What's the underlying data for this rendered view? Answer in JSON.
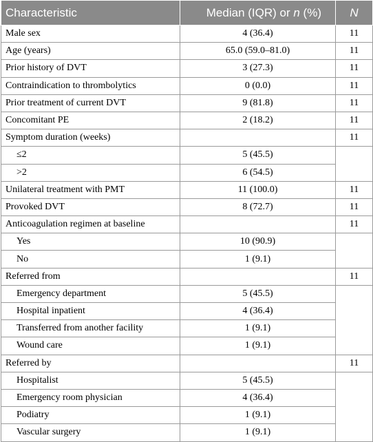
{
  "header": {
    "characteristic": "Characteristic",
    "value_prefix": "Median (IQR) or ",
    "value_n": "n",
    "value_suffix": " (%)",
    "n": "N"
  },
  "rows": [
    {
      "label": "Male sex",
      "value": "4 (36.4)",
      "n": "11"
    },
    {
      "label": "Age (years)",
      "value": "65.0 (59.0–81.0)",
      "n": "11"
    },
    {
      "label": "Prior history of DVT",
      "value": "3 (27.3)",
      "n": "11"
    },
    {
      "label": "Contraindication to thrombolytics",
      "value": "0 (0.0)",
      "n": "11"
    },
    {
      "label": "Prior treatment of current DVT",
      "value": "9 (81.8)",
      "n": "11"
    },
    {
      "label": "Concomitant PE",
      "value": "2 (18.2)",
      "n": "11"
    },
    {
      "label": "Symptom duration (weeks)",
      "value": "",
      "n": "11"
    },
    {
      "label": "≤2",
      "value": "5 (45.5)",
      "n": "",
      "sub": true
    },
    {
      "label": ">2",
      "value": "6 (54.5)",
      "n": "",
      "sub": true
    },
    {
      "label": "Unilateral treatment with PMT",
      "value": "11 (100.0)",
      "n": "11"
    },
    {
      "label": "Provoked DVT",
      "value": "8 (72.7)",
      "n": "11"
    },
    {
      "label": "Anticoagulation regimen at baseline",
      "value": "",
      "n": "11"
    },
    {
      "label": "Yes",
      "value": "10 (90.9)",
      "n": "",
      "sub": true
    },
    {
      "label": "No",
      "value": "1 (9.1)",
      "n": "",
      "sub": true
    },
    {
      "label": "Referred from",
      "value": "",
      "n": "11"
    },
    {
      "label": "Emergency department",
      "value": "5 (45.5)",
      "n": "",
      "sub": true
    },
    {
      "label": "Hospital inpatient",
      "value": "4 (36.4)",
      "n": "",
      "sub": true
    },
    {
      "label": "Transferred from another facility",
      "value": "1 (9.1)",
      "n": "",
      "sub": true
    },
    {
      "label": "Wound care",
      "value": "1 (9.1)",
      "n": "",
      "sub": true
    },
    {
      "label": "Referred by",
      "value": "",
      "n": "11"
    },
    {
      "label": "Hospitalist",
      "value": "5 (45.5)",
      "n": "",
      "sub": true
    },
    {
      "label": "Emergency room physician",
      "value": "4 (36.4)",
      "n": "",
      "sub": true
    },
    {
      "label": "Podiatry",
      "value": "1 (9.1)",
      "n": "",
      "sub": true
    },
    {
      "label": "Vascular surgery",
      "value": "1 (9.1)",
      "n": "",
      "sub": true
    }
  ]
}
